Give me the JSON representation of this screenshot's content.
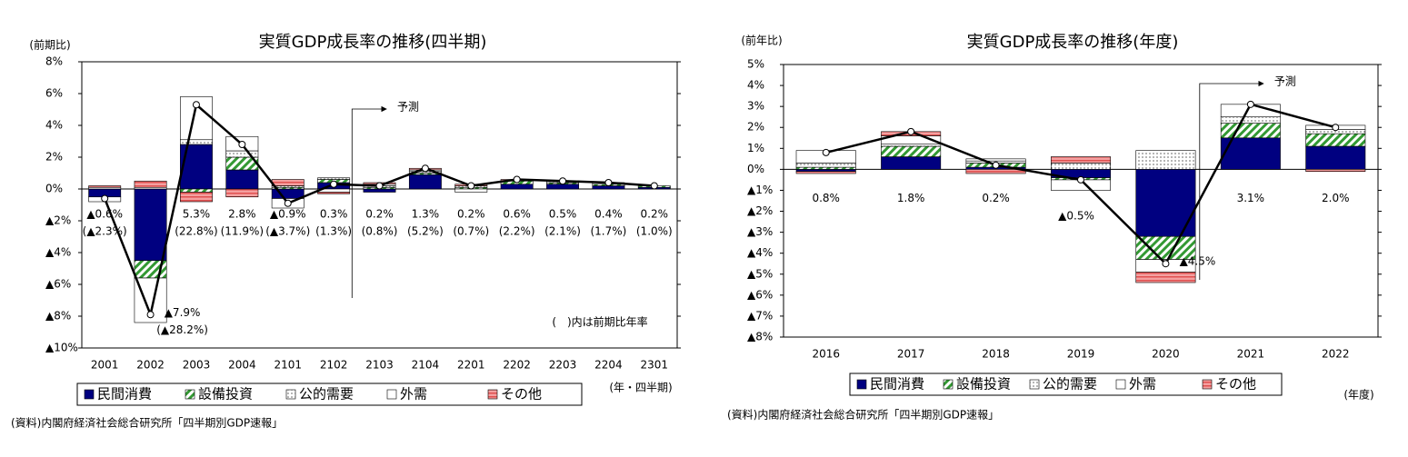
{
  "chart_data": [
    {
      "type": "bar",
      "stacked": true,
      "title": "実質GDP成長率の推移(四半期)",
      "y_label": "(前期比)",
      "x_label": "(年・四半期)",
      "source": "(資料)内閣府経済社会総合研究所「四半期別GDP速報」",
      "note": "(　)内は前期比年率",
      "forecast_label": "予測",
      "forecast_start": "2103",
      "categories": [
        "2001",
        "2002",
        "2003",
        "2004",
        "2101",
        "2102",
        "2103",
        "2104",
        "2201",
        "2202",
        "2203",
        "2204",
        "2301"
      ],
      "ylim": [
        -10,
        8
      ],
      "yticks": [
        {
          "value": -10,
          "label": "▲10%"
        },
        {
          "value": -8,
          "label": "▲8%"
        },
        {
          "value": -6,
          "label": "▲6%"
        },
        {
          "value": -4,
          "label": "▲4%"
        },
        {
          "value": -2,
          "label": "▲2%"
        },
        {
          "value": 0,
          "label": "0%"
        },
        {
          "value": 2,
          "label": "2%"
        },
        {
          "value": 4,
          "label": "4%"
        },
        {
          "value": 6,
          "label": "6%"
        },
        {
          "value": 8,
          "label": "8%"
        }
      ],
      "series": [
        {
          "name": "民間消費",
          "color": "#000080",
          "pattern": "solid",
          "values": [
            -0.5,
            -4.5,
            2.8,
            1.2,
            -0.6,
            0.4,
            -0.2,
            0.9,
            0,
            0.3,
            0.3,
            0.2,
            0.1
          ]
        },
        {
          "name": "設備投資",
          "color": "#339933",
          "pattern": "hatch",
          "values": [
            0,
            -1.1,
            -0.2,
            0.8,
            0.1,
            0.2,
            0.1,
            0.1,
            0.1,
            0.2,
            0.1,
            0.1,
            0.1
          ]
        },
        {
          "name": "公的需要",
          "color": "#000000",
          "pattern": "dots",
          "values": [
            0.1,
            0.1,
            0.3,
            0.4,
            0.1,
            0.1,
            0.1,
            0.1,
            0.1,
            0,
            0.1,
            0.1,
            0
          ]
        },
        {
          "name": "外需",
          "color": "#ffffff",
          "pattern": "none",
          "values": [
            -0.3,
            -2.8,
            2.7,
            0.9,
            -0.6,
            -0.2,
            0.1,
            0.1,
            -0.2,
            0,
            0,
            0,
            0
          ]
        },
        {
          "name": "その他",
          "color": "#e05050",
          "pattern": "stripe",
          "values": [
            0.1,
            0.4,
            -0.6,
            -0.5,
            0.4,
            -0.1,
            0.1,
            0.1,
            0.1,
            0.1,
            0,
            0,
            0
          ]
        }
      ],
      "line": {
        "type": "line",
        "color": "#000000",
        "values": [
          -0.6,
          -7.9,
          5.3,
          2.8,
          -0.9,
          0.3,
          0.2,
          1.3,
          0.2,
          0.6,
          0.5,
          0.4,
          0.2
        ],
        "value_labels": [
          "▲0.6%",
          "▲7.9%",
          "5.3%",
          "2.8%",
          "▲0.9%",
          "0.3%",
          "0.2%",
          "1.3%",
          "0.2%",
          "0.6%",
          "0.5%",
          "0.4%",
          "0.2%"
        ],
        "annualized_values": [
          -2.3,
          -28.2,
          22.8,
          11.9,
          -3.7,
          1.3,
          0.8,
          5.2,
          0.7,
          2.2,
          2.1,
          1.7,
          1.0
        ],
        "annualized_labels": [
          "(▲2.3%)",
          "(▲28.2%)",
          "(22.8%)",
          "(11.9%)",
          "(▲3.7%)",
          "(1.3%)",
          "(0.8%)",
          "(5.2%)",
          "(0.7%)",
          "(2.2%)",
          "(2.1%)",
          "(1.7%)",
          "(1.0%)"
        ]
      }
    },
    {
      "type": "bar",
      "stacked": true,
      "title": "実質GDP成長率の推移(年度)",
      "y_label": "(前年比)",
      "x_label": "(年度)",
      "source": "(資料)内閣府経済社会総合研究所「四半期別GDP速報」",
      "forecast_label": "予測",
      "forecast_start": "2021",
      "categories": [
        "2016",
        "2017",
        "2018",
        "2019",
        "2020",
        "2021",
        "2022"
      ],
      "ylim": [
        -8,
        5
      ],
      "yticks": [
        {
          "value": -8,
          "label": "▲8%"
        },
        {
          "value": -7,
          "label": "▲7%"
        },
        {
          "value": -6,
          "label": "▲6%"
        },
        {
          "value": -5,
          "label": "▲5%"
        },
        {
          "value": -4,
          "label": "▲4%"
        },
        {
          "value": -3,
          "label": "▲3%"
        },
        {
          "value": -2,
          "label": "▲2%"
        },
        {
          "value": -1,
          "label": "▲1%"
        },
        {
          "value": 0,
          "label": "0%"
        },
        {
          "value": 1,
          "label": "1%"
        },
        {
          "value": 2,
          "label": "2%"
        },
        {
          "value": 3,
          "label": "3%"
        },
        {
          "value": 4,
          "label": "4%"
        },
        {
          "value": 5,
          "label": "5%"
        }
      ],
      "series": [
        {
          "name": "民間消費",
          "color": "#000080",
          "pattern": "solid",
          "values": [
            -0.1,
            0.6,
            0.1,
            -0.4,
            -3.2,
            1.5,
            1.1
          ]
        },
        {
          "name": "設備投資",
          "color": "#339933",
          "pattern": "hatch",
          "values": [
            0.1,
            0.5,
            0.2,
            -0.1,
            -1.1,
            0.7,
            0.6
          ]
        },
        {
          "name": "公的需要",
          "color": "#000000",
          "pattern": "dots",
          "values": [
            0.2,
            0.1,
            0.1,
            0.3,
            0.9,
            0.3,
            0.2
          ]
        },
        {
          "name": "外需",
          "color": "#ffffff",
          "pattern": "none",
          "values": [
            0.6,
            0.4,
            0.1,
            -0.5,
            -0.6,
            0.6,
            0.2
          ]
        },
        {
          "name": "その他",
          "color": "#e05050",
          "pattern": "stripe",
          "values": [
            -0.1,
            0.2,
            -0.2,
            0.3,
            -0.5,
            0,
            -0.1
          ]
        }
      ],
      "line": {
        "type": "line",
        "color": "#000000",
        "values": [
          0.8,
          1.8,
          0.2,
          -0.5,
          -4.5,
          3.1,
          2.0
        ],
        "value_labels": [
          "0.8%",
          "1.8%",
          "0.2%",
          "▲0.5%",
          "▲4.5%",
          "3.1%",
          "2.0%"
        ]
      }
    }
  ]
}
